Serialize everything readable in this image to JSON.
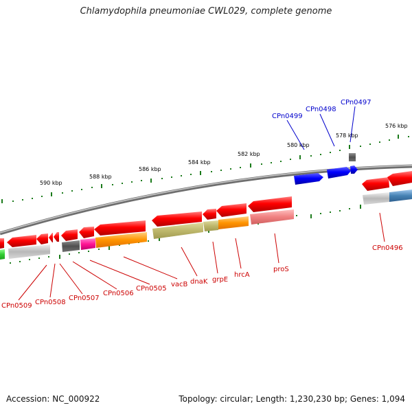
{
  "title": "Chlamydophila pneumoniae CWL029, complete genome",
  "footer": {
    "accession": "Accession: NC_000922",
    "topology": "Topology: circular; Length: 1,230,230 bp; Genes: 1,094"
  },
  "scale_labels": [
    "576 kbp",
    "578 kbp",
    "580 kbp",
    "582 kbp",
    "584 kbp",
    "586 kbp",
    "588 kbp",
    "590 kbp"
  ],
  "genes_forward": [
    "CPn0499",
    "CPn0498",
    "CPn0497"
  ],
  "genes_reverse": [
    "CPn0496",
    "proS",
    "hrcA",
    "grpE",
    "dnaK",
    "vacB",
    "CPn0505",
    "CPn0506",
    "CPn0507",
    "CPn0508",
    "CPn0509"
  ],
  "colors": {
    "forward_gene": "#0000ee",
    "reverse_gene": "#ee0000",
    "label_forward": "#0000cc",
    "label_reverse": "#cc0000",
    "scale_tick": "#1a7a1a",
    "backbone": "#808080"
  }
}
